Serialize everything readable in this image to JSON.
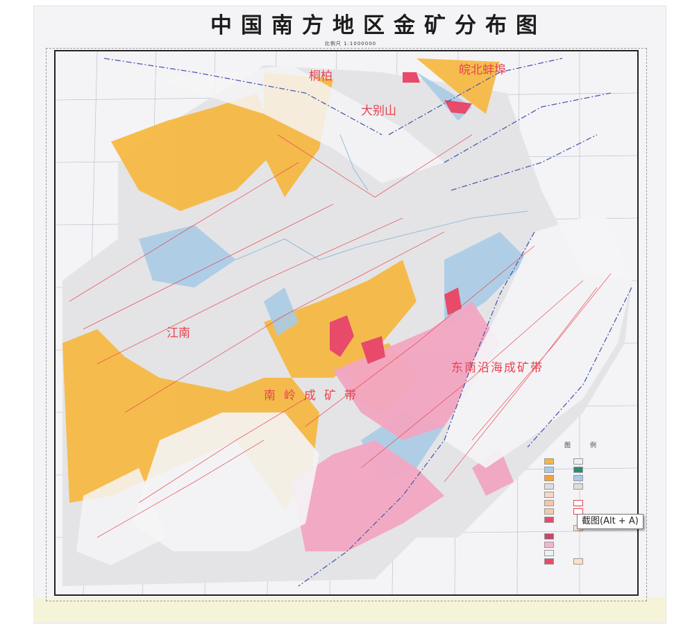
{
  "map": {
    "title": "中国南方地区金矿分布图",
    "scale": "比例尺 1:1000000",
    "region_labels": {
      "wanbei": "皖北蚌埠",
      "dabieshan": "大别山",
      "tongbai": "桐柏",
      "jiangnan": "江南",
      "huanan": "南岭成矿带",
      "dongnan": "东南沿海成矿带"
    },
    "legend": {
      "heading_left": "图",
      "heading_right": "例"
    },
    "colors": {
      "orange": "#f6b73c",
      "blue": "#a9cbe6",
      "pink": "#f2a6c2",
      "red": "#e84a6a",
      "grey": "#dcdcdc",
      "fault": "#e8424f",
      "boundary": "#4a5ab0"
    }
  },
  "tooltip": {
    "text": "截图(Alt + A)"
  }
}
